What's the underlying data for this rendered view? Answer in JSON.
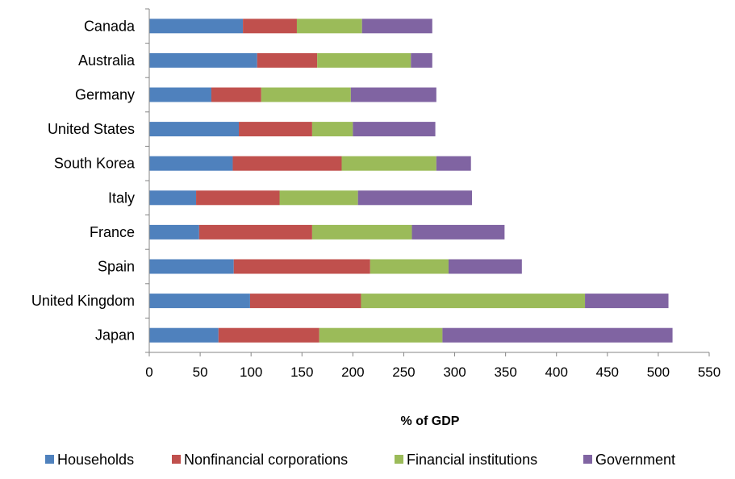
{
  "chart_data": {
    "type": "bar",
    "orientation": "horizontal",
    "stacked": true,
    "title": "",
    "xlabel": "% of GDP",
    "ylabel": "",
    "xlim": [
      0,
      550
    ],
    "x_ticks": [
      0,
      50,
      100,
      150,
      200,
      250,
      300,
      350,
      400,
      450,
      500,
      550
    ],
    "grid": false,
    "legend_position": "bottom",
    "categories": [
      "Canada",
      "Australia",
      "Germany",
      "United States",
      "South Korea",
      "Italy",
      "France",
      "Spain",
      "United Kingdom",
      "Japan"
    ],
    "series": [
      {
        "name": "Households",
        "color": "#4F81BD",
        "values": [
          92,
          106,
          61,
          88,
          82,
          46,
          49,
          83,
          99,
          68
        ]
      },
      {
        "name": "Nonfinancial corporations",
        "color": "#C0504D",
        "values": [
          53,
          59,
          49,
          72,
          107,
          82,
          111,
          134,
          109,
          99
        ]
      },
      {
        "name": "Financial institutions",
        "color": "#9BBB59",
        "values": [
          64,
          92,
          88,
          40,
          93,
          77,
          98,
          77,
          220,
          121
        ]
      },
      {
        "name": "Government",
        "color": "#8064A2",
        "values": [
          69,
          21,
          84,
          81,
          34,
          112,
          91,
          72,
          82,
          226
        ]
      }
    ]
  }
}
